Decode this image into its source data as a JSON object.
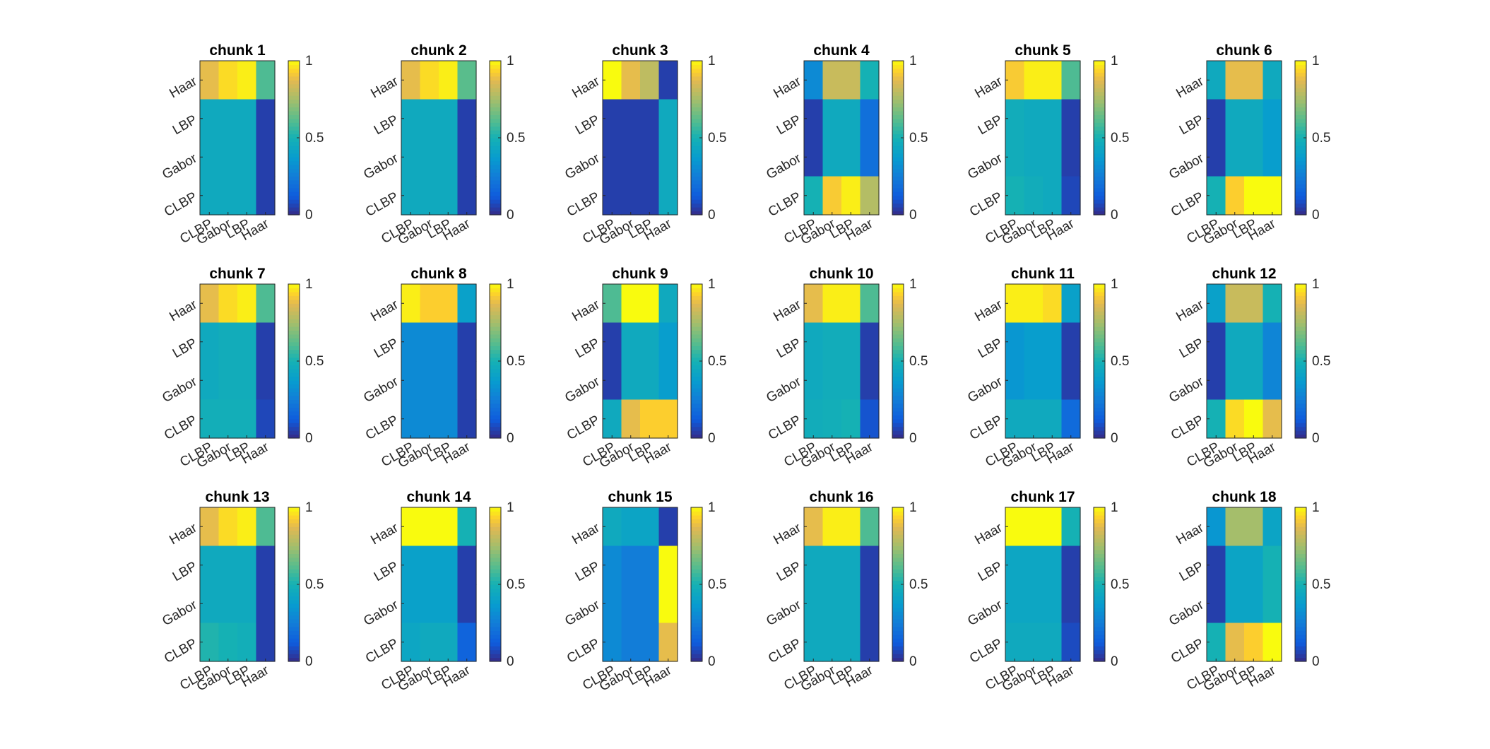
{
  "figure": {
    "colormap": "parula",
    "colorbar_ticks": [
      "0",
      "0.5",
      "1"
    ]
  },
  "chart_data": [
    {
      "type": "heatmap",
      "title": "chunk 1",
      "x": [
        "CLBP",
        "Gabor",
        "LBP",
        "Haar"
      ],
      "y": [
        "Haar",
        "LBP",
        "Gabor",
        "CLBP"
      ],
      "clim": [
        0,
        1
      ],
      "z": [
        [
          0.88,
          0.95,
          0.98,
          0.6
        ],
        [
          0.45,
          0.45,
          0.45,
          0.05
        ],
        [
          0.45,
          0.45,
          0.45,
          0.05
        ],
        [
          0.45,
          0.45,
          0.45,
          0.05
        ]
      ]
    },
    {
      "type": "heatmap",
      "title": "chunk 2",
      "x": [
        "CLBP",
        "Gabor",
        "LBP",
        "Haar"
      ],
      "y": [
        "Haar",
        "LBP",
        "Gabor",
        "CLBP"
      ],
      "clim": [
        0,
        1
      ],
      "z": [
        [
          0.88,
          0.95,
          0.98,
          0.62
        ],
        [
          0.45,
          0.45,
          0.45,
          0.05
        ],
        [
          0.45,
          0.45,
          0.45,
          0.05
        ],
        [
          0.45,
          0.45,
          0.45,
          0.05
        ]
      ]
    },
    {
      "type": "heatmap",
      "title": "chunk 3",
      "x": [
        "CLBP",
        "Gabor",
        "LBP",
        "Haar"
      ],
      "y": [
        "Haar",
        "LBP",
        "Gabor",
        "CLBP"
      ],
      "clim": [
        0,
        1
      ],
      "z": [
        [
          1.0,
          0.88,
          0.8,
          0.05
        ],
        [
          0.05,
          0.05,
          0.05,
          0.45
        ],
        [
          0.05,
          0.05,
          0.05,
          0.45
        ],
        [
          0.05,
          0.05,
          0.05,
          0.45
        ]
      ]
    },
    {
      "type": "heatmap",
      "title": "chunk 4",
      "x": [
        "CLBP",
        "Gabor",
        "LBP",
        "Haar"
      ],
      "y": [
        "Haar",
        "LBP",
        "Gabor",
        "CLBP"
      ],
      "clim": [
        0,
        1
      ],
      "z": [
        [
          0.3,
          0.82,
          0.82,
          0.5
        ],
        [
          0.05,
          0.45,
          0.45,
          0.2
        ],
        [
          0.05,
          0.45,
          0.45,
          0.2
        ],
        [
          0.5,
          0.92,
          0.98,
          0.78
        ]
      ]
    },
    {
      "type": "heatmap",
      "title": "chunk 5",
      "x": [
        "CLBP",
        "Gabor",
        "LBP",
        "Haar"
      ],
      "y": [
        "Haar",
        "LBP",
        "Gabor",
        "CLBP"
      ],
      "clim": [
        0,
        1
      ],
      "z": [
        [
          0.92,
          0.98,
          0.98,
          0.6
        ],
        [
          0.47,
          0.45,
          0.45,
          0.05
        ],
        [
          0.47,
          0.45,
          0.45,
          0.05
        ],
        [
          0.5,
          0.47,
          0.45,
          0.07
        ]
      ]
    },
    {
      "type": "heatmap",
      "title": "chunk 6",
      "x": [
        "CLBP",
        "Gabor",
        "LBP",
        "Haar"
      ],
      "y": [
        "Haar",
        "LBP",
        "Gabor",
        "CLBP"
      ],
      "clim": [
        0,
        1
      ],
      "z": [
        [
          0.45,
          0.88,
          0.88,
          0.45
        ],
        [
          0.05,
          0.45,
          0.45,
          0.38
        ],
        [
          0.05,
          0.45,
          0.45,
          0.38
        ],
        [
          0.5,
          0.93,
          1.0,
          1.0
        ]
      ]
    },
    {
      "type": "heatmap",
      "title": "chunk 7",
      "x": [
        "CLBP",
        "Gabor",
        "LBP",
        "Haar"
      ],
      "y": [
        "Haar",
        "LBP",
        "Gabor",
        "CLBP"
      ],
      "clim": [
        0,
        1
      ],
      "z": [
        [
          0.88,
          0.95,
          0.98,
          0.6
        ],
        [
          0.45,
          0.47,
          0.47,
          0.05
        ],
        [
          0.45,
          0.47,
          0.47,
          0.05
        ],
        [
          0.48,
          0.48,
          0.48,
          0.07
        ]
      ]
    },
    {
      "type": "heatmap",
      "title": "chunk 8",
      "x": [
        "CLBP",
        "Gabor",
        "LBP",
        "Haar"
      ],
      "y": [
        "Haar",
        "LBP",
        "Gabor",
        "CLBP"
      ],
      "clim": [
        0,
        1
      ],
      "z": [
        [
          0.98,
          0.93,
          0.93,
          0.4
        ],
        [
          0.3,
          0.3,
          0.3,
          0.05
        ],
        [
          0.3,
          0.3,
          0.3,
          0.05
        ],
        [
          0.3,
          0.3,
          0.3,
          0.05
        ]
      ]
    },
    {
      "type": "heatmap",
      "title": "chunk 9",
      "x": [
        "CLBP",
        "Gabor",
        "LBP",
        "Haar"
      ],
      "y": [
        "Haar",
        "LBP",
        "Gabor",
        "CLBP"
      ],
      "clim": [
        0,
        1
      ],
      "z": [
        [
          0.6,
          1.0,
          1.0,
          0.45
        ],
        [
          0.05,
          0.45,
          0.45,
          0.38
        ],
        [
          0.05,
          0.45,
          0.45,
          0.38
        ],
        [
          0.45,
          0.88,
          0.93,
          0.93
        ]
      ]
    },
    {
      "type": "heatmap",
      "title": "chunk 10",
      "x": [
        "CLBP",
        "Gabor",
        "LBP",
        "Haar"
      ],
      "y": [
        "Haar",
        "LBP",
        "Gabor",
        "CLBP"
      ],
      "clim": [
        0,
        1
      ],
      "z": [
        [
          0.88,
          0.98,
          0.98,
          0.6
        ],
        [
          0.45,
          0.47,
          0.47,
          0.05
        ],
        [
          0.45,
          0.47,
          0.47,
          0.05
        ],
        [
          0.47,
          0.48,
          0.5,
          0.1
        ]
      ]
    },
    {
      "type": "heatmap",
      "title": "chunk 11",
      "x": [
        "CLBP",
        "Gabor",
        "LBP",
        "Haar"
      ],
      "y": [
        "Haar",
        "LBP",
        "Gabor",
        "CLBP"
      ],
      "clim": [
        0,
        1
      ],
      "z": [
        [
          0.98,
          0.98,
          0.95,
          0.4
        ],
        [
          0.35,
          0.38,
          0.38,
          0.05
        ],
        [
          0.35,
          0.38,
          0.38,
          0.05
        ],
        [
          0.45,
          0.45,
          0.45,
          0.18
        ]
      ]
    },
    {
      "type": "heatmap",
      "title": "chunk 12",
      "x": [
        "CLBP",
        "Gabor",
        "LBP",
        "Haar"
      ],
      "y": [
        "Haar",
        "LBP",
        "Gabor",
        "CLBP"
      ],
      "clim": [
        0,
        1
      ],
      "z": [
        [
          0.4,
          0.82,
          0.82,
          0.5
        ],
        [
          0.05,
          0.45,
          0.45,
          0.28
        ],
        [
          0.05,
          0.45,
          0.45,
          0.28
        ],
        [
          0.5,
          0.95,
          1.0,
          0.88
        ]
      ]
    },
    {
      "type": "heatmap",
      "title": "chunk 13",
      "x": [
        "CLBP",
        "Gabor",
        "LBP",
        "Haar"
      ],
      "y": [
        "Haar",
        "LBP",
        "Gabor",
        "CLBP"
      ],
      "clim": [
        0,
        1
      ],
      "z": [
        [
          0.88,
          0.95,
          0.98,
          0.6
        ],
        [
          0.45,
          0.45,
          0.45,
          0.05
        ],
        [
          0.45,
          0.45,
          0.45,
          0.05
        ],
        [
          0.52,
          0.5,
          0.48,
          0.05
        ]
      ]
    },
    {
      "type": "heatmap",
      "title": "chunk 14",
      "x": [
        "CLBP",
        "Gabor",
        "LBP",
        "Haar"
      ],
      "y": [
        "Haar",
        "LBP",
        "Gabor",
        "CLBP"
      ],
      "clim": [
        0,
        1
      ],
      "z": [
        [
          1.0,
          1.0,
          1.0,
          0.5
        ],
        [
          0.4,
          0.4,
          0.4,
          0.05
        ],
        [
          0.4,
          0.4,
          0.4,
          0.05
        ],
        [
          0.43,
          0.45,
          0.45,
          0.15
        ]
      ]
    },
    {
      "type": "heatmap",
      "title": "chunk 15",
      "x": [
        "CLBP",
        "Gabor",
        "LBP",
        "Haar"
      ],
      "y": [
        "Haar",
        "LBP",
        "Gabor",
        "CLBP"
      ],
      "clim": [
        0,
        1
      ],
      "z": [
        [
          0.45,
          0.42,
          0.42,
          0.05
        ],
        [
          0.3,
          0.25,
          0.25,
          1.0
        ],
        [
          0.3,
          0.25,
          0.25,
          1.0
        ],
        [
          0.3,
          0.25,
          0.25,
          0.88
        ]
      ]
    },
    {
      "type": "heatmap",
      "title": "chunk 16",
      "x": [
        "CLBP",
        "Gabor",
        "LBP",
        "Haar"
      ],
      "y": [
        "Haar",
        "LBP",
        "Gabor",
        "CLBP"
      ],
      "clim": [
        0,
        1
      ],
      "z": [
        [
          0.88,
          0.98,
          0.98,
          0.6
        ],
        [
          0.45,
          0.45,
          0.45,
          0.05
        ],
        [
          0.45,
          0.45,
          0.45,
          0.05
        ],
        [
          0.45,
          0.45,
          0.45,
          0.05
        ]
      ]
    },
    {
      "type": "heatmap",
      "title": "chunk 17",
      "x": [
        "CLBP",
        "Gabor",
        "LBP",
        "Haar"
      ],
      "y": [
        "Haar",
        "LBP",
        "Gabor",
        "CLBP"
      ],
      "clim": [
        0,
        1
      ],
      "z": [
        [
          1.0,
          1.0,
          1.0,
          0.5
        ],
        [
          0.43,
          0.43,
          0.43,
          0.05
        ],
        [
          0.43,
          0.43,
          0.43,
          0.05
        ],
        [
          0.45,
          0.45,
          0.45,
          0.08
        ]
      ]
    },
    {
      "type": "heatmap",
      "title": "chunk 18",
      "x": [
        "CLBP",
        "Gabor",
        "LBP",
        "Haar"
      ],
      "y": [
        "Haar",
        "LBP",
        "Gabor",
        "CLBP"
      ],
      "clim": [
        0,
        1
      ],
      "z": [
        [
          0.35,
          0.75,
          0.75,
          0.42
        ],
        [
          0.05,
          0.42,
          0.42,
          0.5
        ],
        [
          0.05,
          0.42,
          0.42,
          0.5
        ],
        [
          0.5,
          0.88,
          0.93,
          1.0
        ]
      ]
    }
  ]
}
